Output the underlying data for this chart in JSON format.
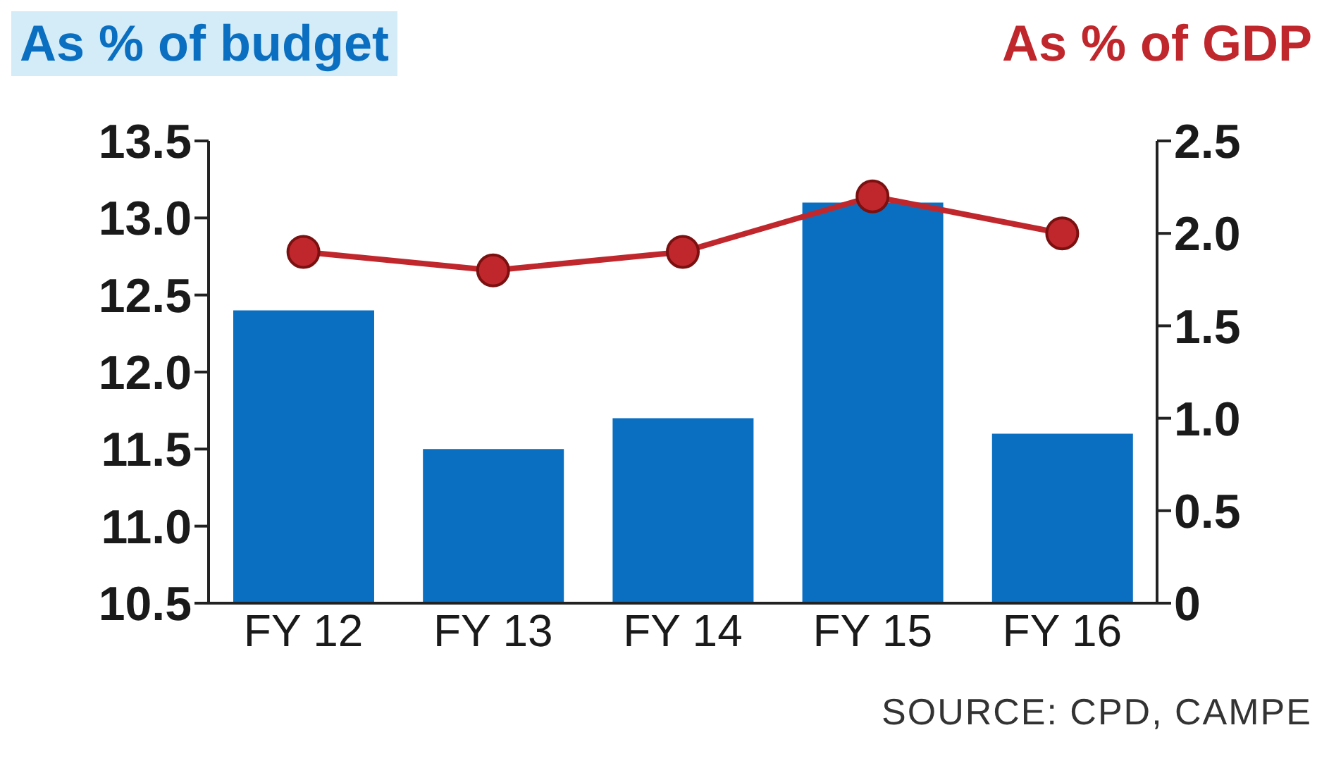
{
  "chart_data": {
    "type": "bar",
    "ylabel": "As % of budget",
    "y2label": "As % of GDP",
    "categories": [
      "FY 12",
      "FY 13",
      "FY 14",
      "FY 15",
      "FY 16"
    ],
    "series": [
      {
        "color": "#0b6fc1",
        "values": [
          12.4,
          11.5,
          11.7,
          13.1,
          11.6
        ]
      },
      {
        "type": "line",
        "axis": "y2",
        "color": "#c0272d",
        "marker": "circle",
        "values": [
          1.9,
          1.8,
          1.9,
          2.2,
          2.0
        ]
      }
    ],
    "ylim": [
      10.5,
      13.5
    ],
    "yticks": [
      {
        "value": 10.5,
        "label": "10.5"
      },
      {
        "value": 11,
        "label": "11.0"
      },
      {
        "value": 11.5,
        "label": "11.5"
      },
      {
        "value": 12,
        "label": "12.0"
      },
      {
        "value": 12.5,
        "label": "12.5"
      },
      {
        "value": 13,
        "label": "13.0"
      },
      {
        "value": 13.5,
        "label": "13.5"
      }
    ],
    "y2lim": [
      0,
      2.5
    ],
    "y2ticks": [
      0,
      {
        "value": 0.5,
        "label": "0.5"
      },
      {
        "value": 1,
        "label": "1.0"
      },
      {
        "value": 1.5,
        "label": "1.5"
      },
      {
        "value": 2,
        "label": "2.0"
      },
      {
        "value": 2.5,
        "label": "2.5"
      }
    ],
    "grid": false,
    "legend": false,
    "annotations": [
      "SOURCE: CPD, CAMPE"
    ]
  }
}
